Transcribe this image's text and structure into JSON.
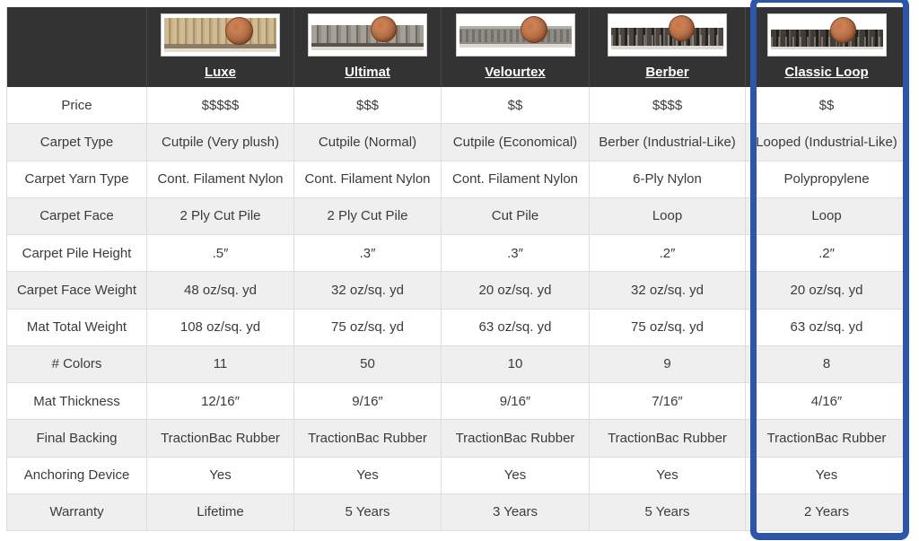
{
  "colors": {
    "highlight_border": "#2d56a9",
    "header_bg": "#333333",
    "stripe_bg": "#efefef",
    "grid_line": "#dddddd",
    "text": "#3b3b3b"
  },
  "table": {
    "columns": [
      {
        "name": "Luxe"
      },
      {
        "name": "Ultimat"
      },
      {
        "name": "Velourtex"
      },
      {
        "name": "Berber"
      },
      {
        "name": "Classic Loop",
        "highlighted": true
      }
    ],
    "rows": [
      {
        "label": "Price",
        "values": [
          "$$$$$",
          "$$$",
          "$$",
          "$$$$",
          "$$"
        ]
      },
      {
        "label": "Carpet Type",
        "values": [
          "Cutpile (Very plush)",
          "Cutpile (Normal)",
          "Cutpile (Economical)",
          "Berber (Industrial-Like)",
          "Looped (Industrial-Like)"
        ]
      },
      {
        "label": "Carpet Yarn Type",
        "values": [
          "Cont. Filament Nylon",
          "Cont. Filament Nylon",
          "Cont. Filament Nylon",
          "6-Ply Nylon",
          "Polypropylene"
        ]
      },
      {
        "label": "Carpet Face",
        "values": [
          "2 Ply Cut Pile",
          "2 Ply Cut Pile",
          "Cut Pile",
          "Loop",
          "Loop"
        ]
      },
      {
        "label": "Carpet Pile Height",
        "values": [
          ".5″",
          ".3″",
          ".3″",
          ".2″",
          ".2″"
        ]
      },
      {
        "label": "Carpet Face Weight",
        "values": [
          "48 oz/sq. yd",
          "32 oz/sq. yd",
          "20 oz/sq. yd",
          "32 oz/sq. yd",
          "20 oz/sq. yd"
        ]
      },
      {
        "label": "Mat Total Weight",
        "values": [
          "108 oz/sq. yd",
          "75 oz/sq. yd",
          "63 oz/sq. yd",
          "75 oz/sq. yd",
          "63 oz/sq. yd"
        ]
      },
      {
        "label": "# Colors",
        "values": [
          "11",
          "50",
          "10",
          "9",
          "8"
        ]
      },
      {
        "label": "Mat Thickness",
        "values": [
          "12/16″",
          "9/16″",
          "9/16″",
          "7/16″",
          "4/16″"
        ]
      },
      {
        "label": "Final Backing",
        "values": [
          "TractionBac Rubber",
          "TractionBac Rubber",
          "TractionBac Rubber",
          "TractionBac Rubber",
          "TractionBac Rubber"
        ]
      },
      {
        "label": "Anchoring Device",
        "values": [
          "Yes",
          "Yes",
          "Yes",
          "Yes",
          "Yes"
        ]
      },
      {
        "label": "Warranty",
        "values": [
          "Lifetime",
          "5 Years",
          "3 Years",
          "5 Years",
          "2 Years"
        ]
      }
    ]
  }
}
